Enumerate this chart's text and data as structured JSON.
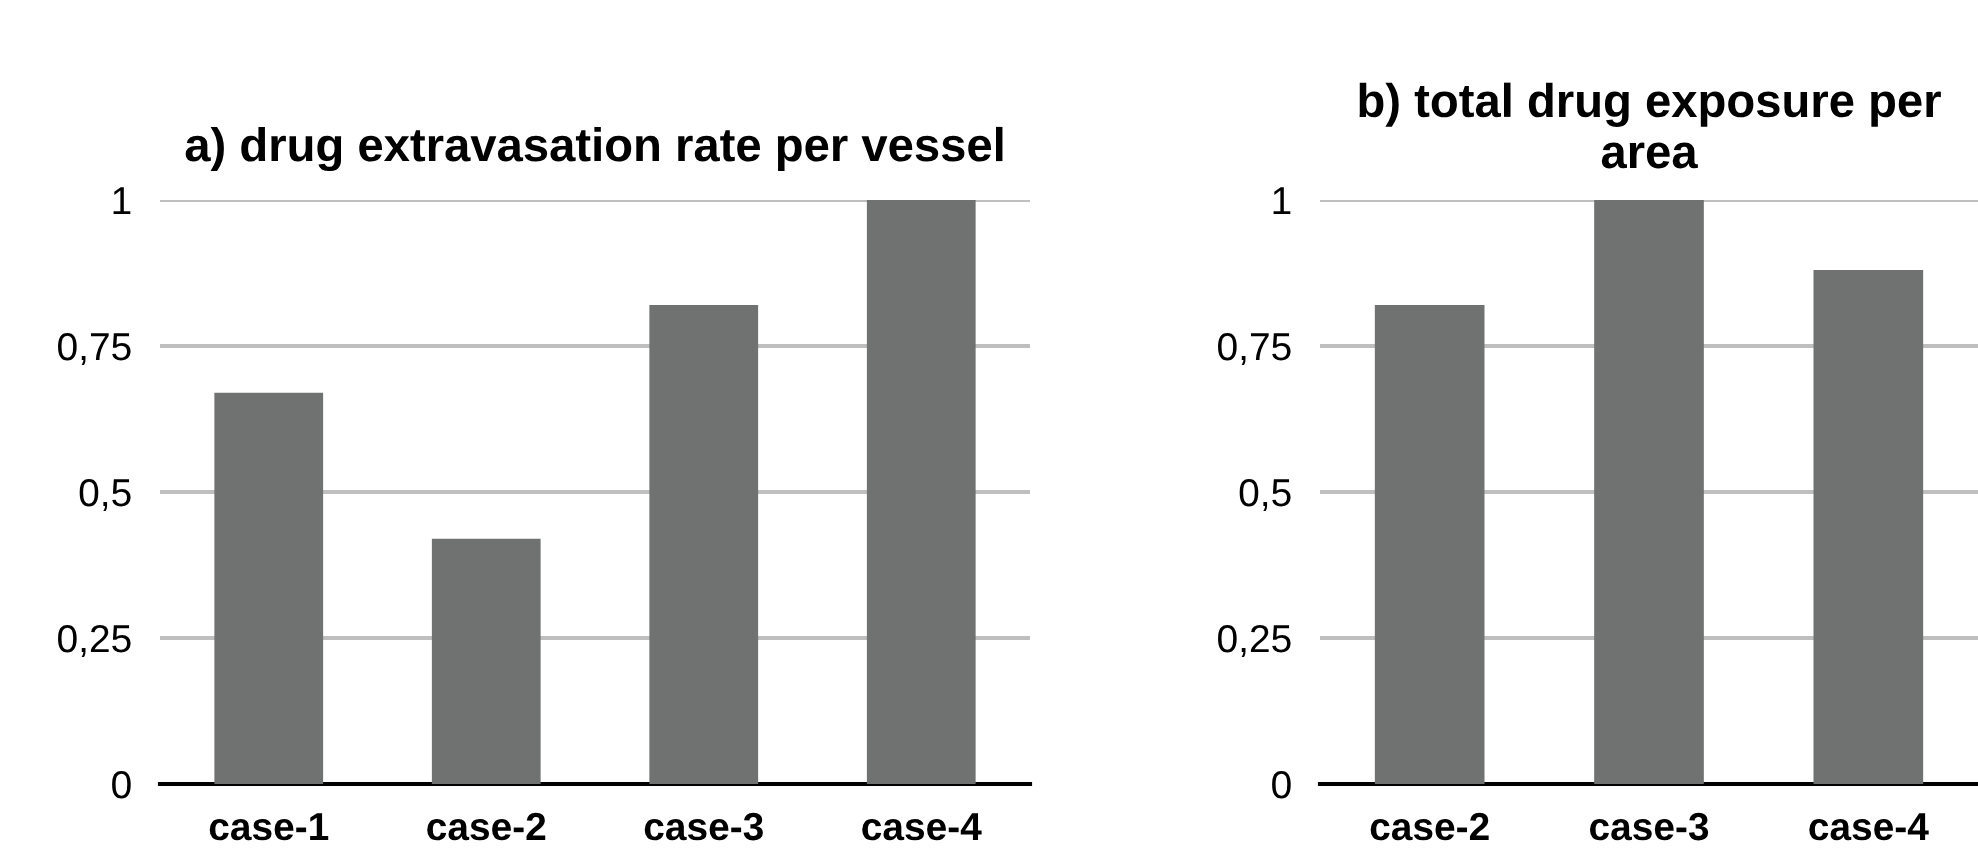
{
  "chart_data": [
    {
      "type": "bar",
      "title": "a) drug extravasation rate per vessel",
      "categories": [
        "case-1",
        "case-2",
        "case-3",
        "case-4"
      ],
      "values": [
        0.67,
        0.42,
        0.82,
        1.0
      ],
      "color": "#6f7270",
      "ylim": [
        0,
        1
      ],
      "yticks": [
        0,
        {
          "value": 0.25,
          "label": "0,25"
        },
        {
          "value": 0.5,
          "label": "0,5"
        },
        {
          "value": 0.75,
          "label": "0,75"
        },
        1
      ],
      "grid": "y"
    },
    {
      "type": "bar",
      "title": "b) total drug exposure per area",
      "categories": [
        "case-2",
        "case-3",
        "case-4"
      ],
      "values": [
        0.82,
        1.0,
        0.88
      ],
      "color": "#6f7270",
      "ylim": [
        0,
        1
      ],
      "yticks": [
        0,
        {
          "value": 0.25,
          "label": "0,25"
        },
        {
          "value": 0.5,
          "label": "0,5"
        },
        {
          "value": 0.75,
          "label": "0,75"
        },
        1
      ],
      "grid": "y"
    }
  ]
}
